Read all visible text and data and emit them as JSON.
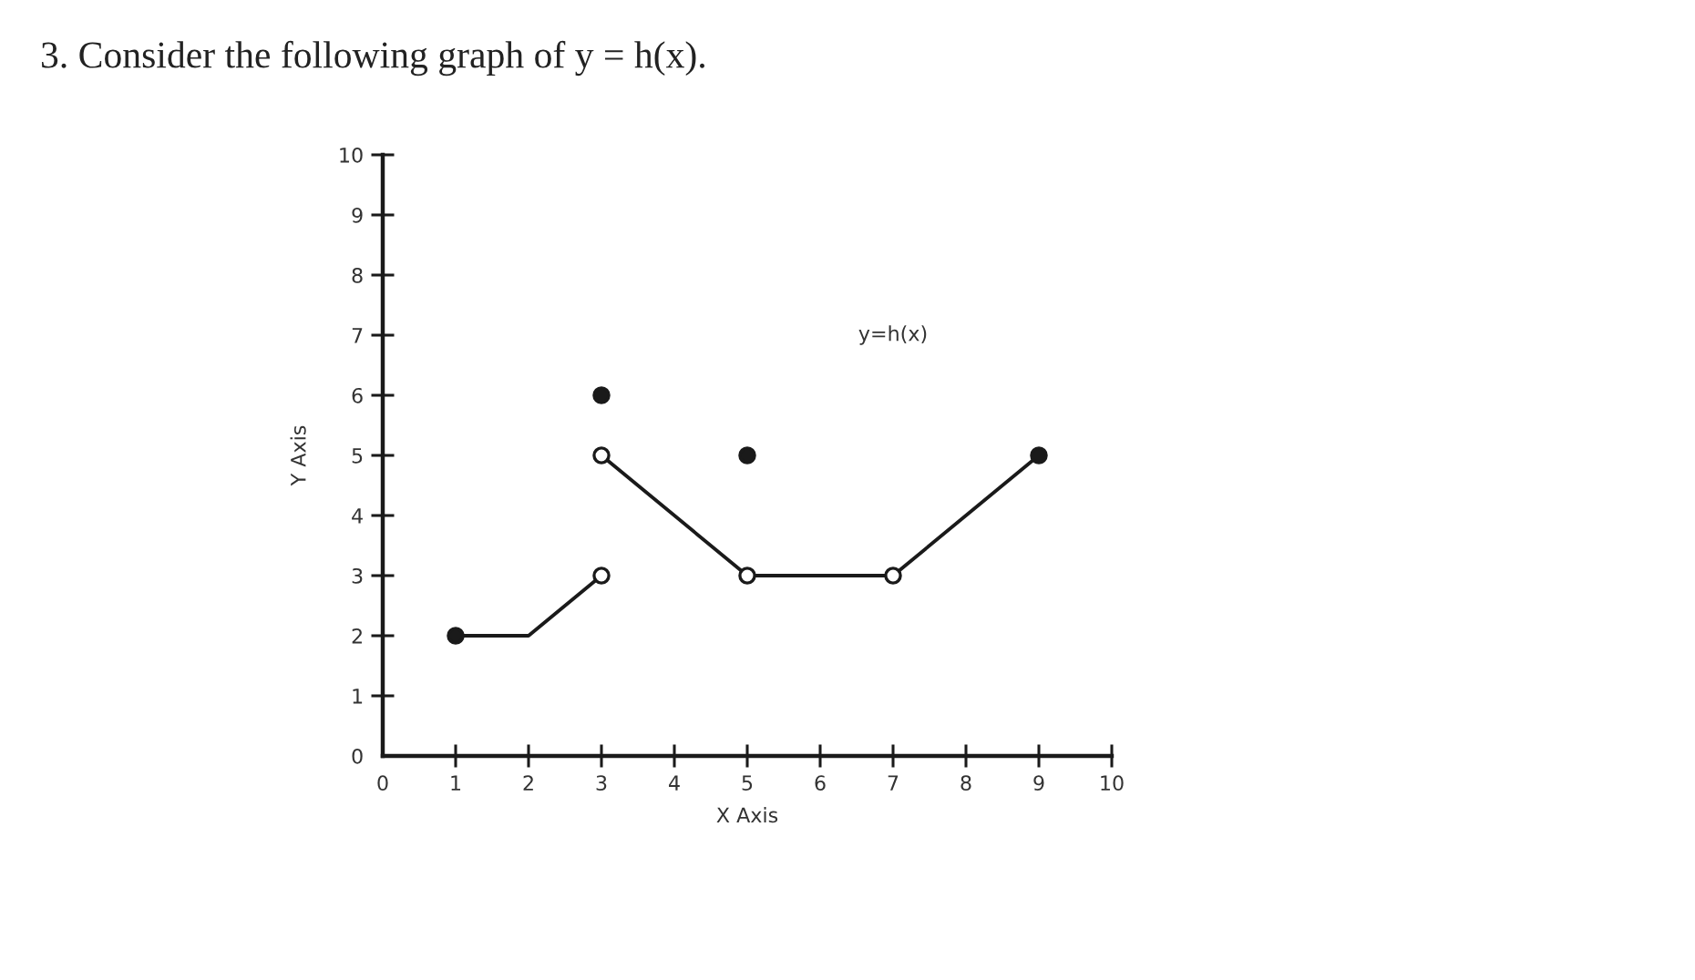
{
  "chart_data": {
    "type": "line",
    "title": "3. Consider the following graph of y = h(x).",
    "xlabel": "X Axis",
    "ylabel": "Y Axis",
    "annotations": [
      "y=h(x)"
    ],
    "xlim": [
      0,
      10
    ],
    "ylim": [
      0,
      10
    ],
    "xticks": [
      0,
      1,
      2,
      3,
      4,
      5,
      6,
      7,
      8,
      9,
      10
    ],
    "yticks": [
      0,
      1,
      2,
      3,
      4,
      5,
      6,
      7,
      8,
      9,
      10
    ],
    "series": [
      {
        "color": "#1a1a1a",
        "x": [
          1,
          2,
          3
        ],
        "values": [
          2,
          2,
          3
        ]
      },
      {
        "color": "#1a1a1a",
        "x": [
          3,
          5,
          7,
          9
        ],
        "values": [
          5,
          3,
          3,
          5
        ]
      },
      {
        "type": "scatter",
        "marker": "circle",
        "color": "#1a1a1a",
        "x": [
          1,
          3,
          5,
          9
        ],
        "values": [
          2,
          6,
          5,
          5
        ]
      },
      {
        "type": "scatter",
        "marker": "circle",
        "color": "#ffffff",
        "x": [
          3,
          3,
          5,
          7
        ],
        "values": [
          3,
          5,
          3,
          3
        ]
      }
    ]
  }
}
